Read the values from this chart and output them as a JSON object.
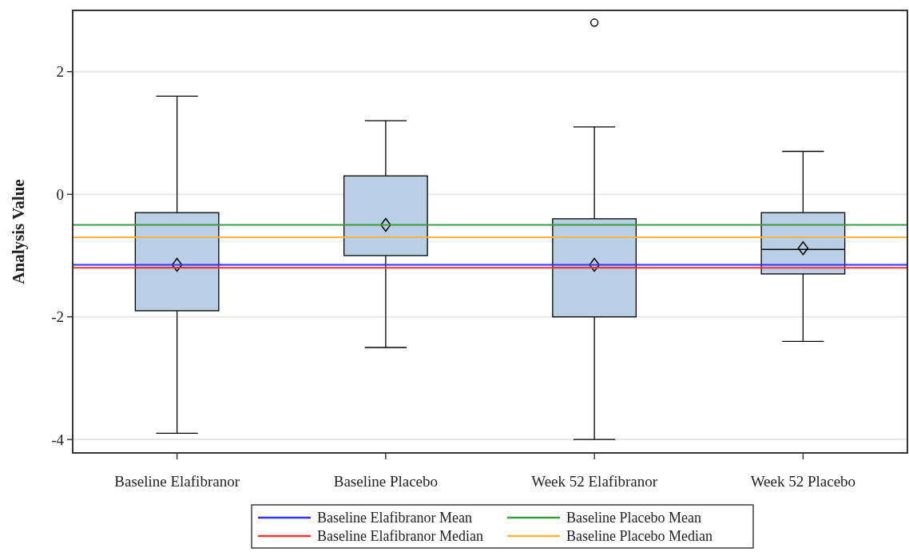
{
  "chart_data": {
    "type": "box",
    "ylabel": "Analysis Value",
    "categories": [
      "Baseline Elafibranor",
      "Baseline Placebo",
      "Week 52 Elafibranor",
      "Week 52 Placebo"
    ],
    "boxes": [
      {
        "low": -3.9,
        "q1": -1.9,
        "median": -1.2,
        "q3": -0.3,
        "high": 1.6,
        "mean": -1.15
      },
      {
        "low": -2.5,
        "q1": -1.0,
        "median": -0.7,
        "q3": 0.3,
        "high": 1.2,
        "mean": -0.5
      },
      {
        "low": -4.0,
        "q1": -2.0,
        "median": -1.2,
        "q3": -0.4,
        "high": 1.1,
        "mean": -1.15,
        "outliers": [
          2.8
        ]
      },
      {
        "low": -2.4,
        "q1": -1.3,
        "median": -0.9,
        "q3": -0.3,
        "high": 0.7,
        "mean": -0.88
      }
    ],
    "color": "#b8cfe6",
    "marker": "diamond",
    "ylim": [
      -4.22,
      3.0
    ],
    "yticks": [
      -4,
      -2,
      0,
      2
    ],
    "grid": "y",
    "legend": "bottom",
    "ref_lines": [
      {
        "axis": "y",
        "value": -1.15,
        "label": "Baseline Elafibranor Mean",
        "color": "#3333ff"
      },
      {
        "axis": "y",
        "value": -0.5,
        "label": "Baseline Placebo Mean",
        "color": "#3c9c3c"
      },
      {
        "axis": "y",
        "value": -1.2,
        "label": "Baseline Elafibranor Median",
        "color": "#ff3333"
      },
      {
        "axis": "y",
        "value": -0.7,
        "label": "Baseline Placebo Median",
        "color": "#ffb340"
      }
    ]
  }
}
